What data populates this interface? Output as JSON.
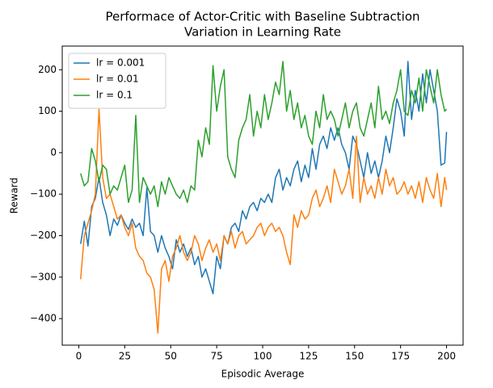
{
  "chart_data": {
    "type": "line",
    "title": [
      "Performace of Actor-Critic with Baseline Subtraction",
      "Variation in Learning Rate"
    ],
    "x_label": "Episodic Average",
    "y_label": "Reward",
    "legend": "upper left",
    "x": [
      1,
      3,
      5,
      7,
      9,
      11,
      13,
      15,
      17,
      19,
      21,
      23,
      25,
      27,
      29,
      31,
      33,
      35,
      37,
      39,
      41,
      43,
      45,
      47,
      49,
      51,
      53,
      55,
      57,
      59,
      61,
      63,
      65,
      67,
      69,
      71,
      73,
      75,
      77,
      79,
      81,
      83,
      85,
      87,
      89,
      91,
      93,
      95,
      97,
      99,
      101,
      103,
      105,
      107,
      109,
      111,
      113,
      115,
      117,
      119,
      121,
      123,
      125,
      127,
      129,
      131,
      133,
      135,
      137,
      139,
      141,
      143,
      145,
      147,
      149,
      151,
      153,
      155,
      157,
      159,
      161,
      163,
      165,
      167,
      169,
      171,
      173,
      175,
      177,
      179,
      181,
      183,
      185,
      187,
      189,
      191,
      193,
      195,
      197,
      199,
      200
    ],
    "series": [
      {
        "name": "lr = 0.001",
        "color": "#1f77b4",
        "values": [
          -220,
          -165,
          -225,
          -130,
          -110,
          -60,
          -120,
          -150,
          -200,
          -160,
          -175,
          -150,
          -170,
          -185,
          -160,
          -180,
          -170,
          -200,
          -85,
          -190,
          -200,
          -240,
          -200,
          -230,
          -250,
          -280,
          -210,
          -240,
          -220,
          -250,
          -230,
          -270,
          -250,
          -300,
          -280,
          -310,
          -340,
          -250,
          -280,
          -200,
          -220,
          -180,
          -170,
          -190,
          -140,
          -160,
          -130,
          -120,
          -140,
          -110,
          -120,
          -100,
          -120,
          -60,
          -40,
          -90,
          -60,
          -80,
          -40,
          -20,
          -70,
          -30,
          -60,
          10,
          -40,
          20,
          40,
          10,
          60,
          30,
          60,
          20,
          0,
          -40,
          40,
          20,
          -20,
          -60,
          0,
          -50,
          -20,
          -60,
          -20,
          40,
          0,
          60,
          130,
          100,
          40,
          220,
          80,
          150,
          100,
          190,
          120,
          200,
          150,
          100,
          -30,
          -25,
          50
        ]
      },
      {
        "name": "lr = 0.01",
        "color": "#ff7f0e",
        "values": [
          -305,
          -200,
          -170,
          -140,
          -100,
          105,
          -60,
          -110,
          -100,
          -130,
          -160,
          -150,
          -180,
          -200,
          -170,
          -230,
          -250,
          -260,
          -290,
          -300,
          -330,
          -435,
          -280,
          -260,
          -310,
          -250,
          -230,
          -200,
          -240,
          -260,
          -240,
          -200,
          -220,
          -260,
          -230,
          -210,
          -240,
          -220,
          -260,
          -200,
          -220,
          -190,
          -230,
          -200,
          -190,
          -220,
          -210,
          -200,
          -180,
          -170,
          -200,
          -180,
          -170,
          -190,
          -180,
          -200,
          -240,
          -270,
          -150,
          -180,
          -140,
          -160,
          -150,
          -110,
          -90,
          -130,
          -110,
          -80,
          -120,
          -40,
          -70,
          -100,
          -80,
          -40,
          -110,
          40,
          -120,
          -60,
          -100,
          -80,
          -110,
          -60,
          -100,
          -40,
          -80,
          -60,
          -100,
          -90,
          -70,
          -100,
          -80,
          -110,
          -70,
          -120,
          -60,
          -90,
          -110,
          -50,
          -130,
          -60,
          -90
        ]
      },
      {
        "name": "lr = 0.1",
        "color": "#2ca02c",
        "values": [
          -50,
          -80,
          -70,
          10,
          -20,
          -70,
          -30,
          -40,
          -100,
          -80,
          -90,
          -60,
          -30,
          -120,
          -90,
          90,
          -120,
          -60,
          -80,
          -100,
          -80,
          -130,
          -70,
          -100,
          -60,
          -80,
          -100,
          -110,
          -90,
          -120,
          -80,
          -90,
          30,
          -10,
          60,
          20,
          210,
          100,
          160,
          200,
          -10,
          -40,
          -60,
          30,
          60,
          80,
          140,
          40,
          100,
          60,
          140,
          80,
          120,
          170,
          140,
          220,
          100,
          150,
          80,
          120,
          60,
          90,
          40,
          20,
          100,
          60,
          140,
          80,
          100,
          80,
          40,
          80,
          120,
          60,
          100,
          120,
          60,
          40,
          80,
          120,
          60,
          160,
          80,
          100,
          70,
          120,
          150,
          200,
          100,
          90,
          150,
          120,
          180,
          100,
          200,
          160,
          120,
          200,
          140,
          100,
          105
        ]
      }
    ],
    "xlim": [
      -9,
      209
    ],
    "ylim": [
      -464,
      257
    ],
    "xticks": [
      0,
      25,
      50,
      75,
      100,
      125,
      150,
      175,
      200
    ],
    "yticks": [
      {
        "value": -400,
        "label": "−400"
      },
      {
        "value": -300,
        "label": "−300"
      },
      {
        "value": -200,
        "label": "−200"
      },
      {
        "value": -100,
        "label": "−100"
      },
      0,
      100,
      200
    ]
  }
}
